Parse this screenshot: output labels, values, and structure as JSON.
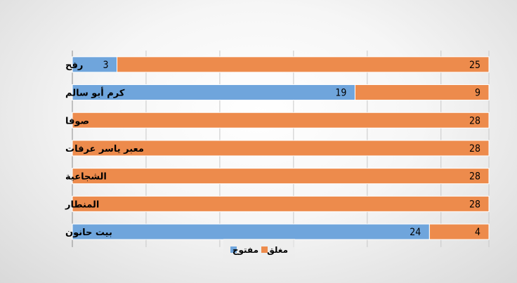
{
  "chart_data": {
    "type": "bar",
    "orientation": "horizontal",
    "stacked": true,
    "direction": "right-to-left",
    "categories": [
      "رفح",
      "كرم أبو سالم",
      "صوفا",
      "معبر ياسر عرفات",
      "الشجاعية",
      "المنطار",
      "بيت حانون"
    ],
    "series": [
      {
        "name": "مغلق",
        "color": "#ED8B4C",
        "values": [
          25,
          9,
          28,
          28,
          28,
          28,
          4
        ]
      },
      {
        "name": "مفتوح",
        "color": "#6FA5DC",
        "values": [
          3,
          19,
          0,
          0,
          0,
          0,
          24
        ]
      }
    ],
    "xlim": [
      0,
      28
    ],
    "grid": true,
    "legend_position": "bottom",
    "data_labels": true
  }
}
